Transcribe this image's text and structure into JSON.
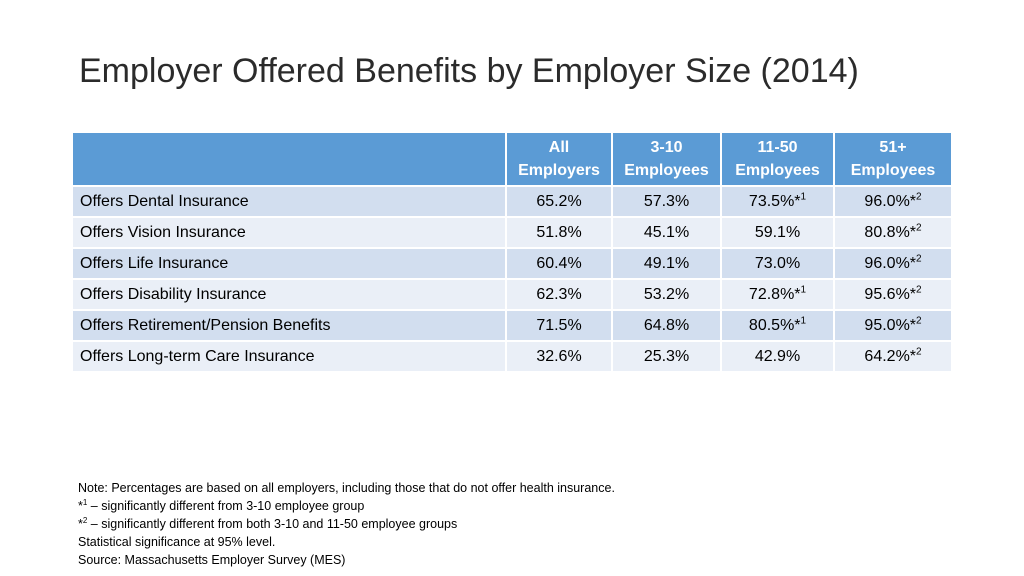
{
  "title": "Employer Offered Benefits by Employer Size (2014)",
  "table": {
    "headers": [
      {
        "line1": "All",
        "line2": "Employers"
      },
      {
        "line1": "3-10",
        "line2": "Employees"
      },
      {
        "line1": "11-50",
        "line2": "Employees"
      },
      {
        "line1": "51+",
        "line2": "Employees"
      }
    ],
    "rows": [
      {
        "label": "Offers Dental Insurance",
        "cells": [
          {
            "value": "65.2%",
            "mark": ""
          },
          {
            "value": "57.3%",
            "mark": ""
          },
          {
            "value": "73.5%*",
            "mark": "1"
          },
          {
            "value": "96.0%*",
            "mark": "2"
          }
        ]
      },
      {
        "label": "Offers Vision Insurance",
        "cells": [
          {
            "value": "51.8%",
            "mark": ""
          },
          {
            "value": "45.1%",
            "mark": ""
          },
          {
            "value": "59.1%",
            "mark": ""
          },
          {
            "value": "80.8%*",
            "mark": "2"
          }
        ]
      },
      {
        "label": "Offers Life Insurance",
        "cells": [
          {
            "value": "60.4%",
            "mark": ""
          },
          {
            "value": "49.1%",
            "mark": ""
          },
          {
            "value": "73.0%",
            "mark": ""
          },
          {
            "value": "96.0%*",
            "mark": "2"
          }
        ]
      },
      {
        "label": "Offers Disability Insurance",
        "cells": [
          {
            "value": "62.3%",
            "mark": ""
          },
          {
            "value": "53.2%",
            "mark": ""
          },
          {
            "value": "72.8%*",
            "mark": "1"
          },
          {
            "value": "95.6%*",
            "mark": "2"
          }
        ]
      },
      {
        "label": "Offers Retirement/Pension Benefits",
        "cells": [
          {
            "value": "71.5%",
            "mark": ""
          },
          {
            "value": "64.8%",
            "mark": ""
          },
          {
            "value": "80.5%*",
            "mark": "1"
          },
          {
            "value": "95.0%*",
            "mark": "2"
          }
        ]
      },
      {
        "label": "Offers Long-term Care Insurance",
        "cells": [
          {
            "value": "32.6%",
            "mark": ""
          },
          {
            "value": "25.3%",
            "mark": ""
          },
          {
            "value": "42.9%",
            "mark": ""
          },
          {
            "value": "64.2%*",
            "mark": "2"
          }
        ]
      }
    ]
  },
  "notes": {
    "line1": "Note: Percentages are based on all employers, including those that do not offer health insurance.",
    "line2_prefix": "*",
    "line2_mark": "1",
    "line2_text": " – significantly different from 3-10 employee group",
    "line3_prefix": "*",
    "line3_mark": "2",
    "line3_text": " – significantly different from both 3-10 and 11-50 employee groups",
    "line4": "Statistical significance at 95% level.",
    "line5": "Source: Massachusetts Employer Survey (MES)"
  },
  "colors": {
    "header_bg": "#5b9bd5",
    "row_odd": "#d2deef",
    "row_even": "#eaeff7"
  }
}
